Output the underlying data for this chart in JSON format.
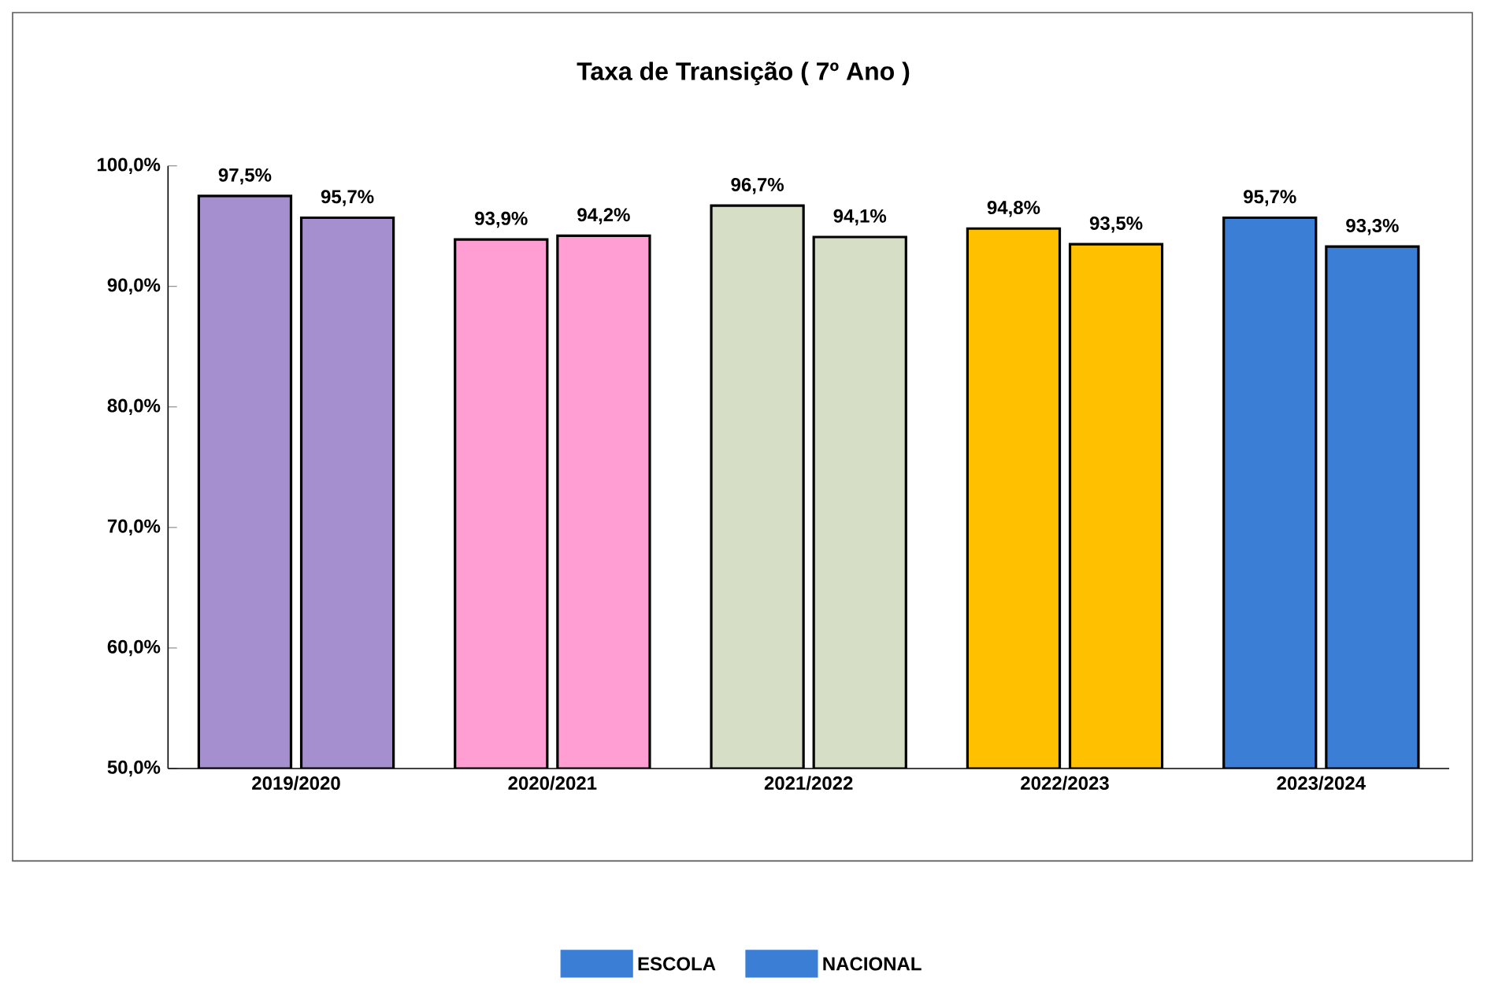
{
  "chart_data": {
    "type": "bar",
    "title": "Taxa de Transição ( 7º Ano )",
    "categories": [
      "2019/2020",
      "2020/2021",
      "2021/2022",
      "2022/2023",
      "2023/2024"
    ],
    "series": [
      {
        "name": "ESCOLA",
        "colors": [
          "#a68fcf",
          "#ff9ed2",
          "#d6dfc6",
          "#ffc000",
          "#3a7fd5"
        ],
        "values": [
          97.5,
          93.9,
          96.7,
          94.8,
          95.7
        ],
        "value_labels": [
          "97,5%",
          "93,9%",
          "96,7%",
          "94,8%",
          "95,7%"
        ]
      },
      {
        "name": "NACIONAL",
        "colors": [
          "#a68fcf",
          "#ff9ed2",
          "#d6dfc6",
          "#ffc000",
          "#3a7fd5"
        ],
        "values": [
          95.7,
          94.2,
          94.1,
          93.5,
          93.3
        ],
        "value_labels": [
          "95,7%",
          "94,2%",
          "94,1%",
          "93,5%",
          "93,3%"
        ]
      }
    ],
    "ylim": [
      50,
      100
    ],
    "yticks": [
      {
        "value": 50,
        "label": "50,0%"
      },
      {
        "value": 60,
        "label": "60,0%"
      },
      {
        "value": 70,
        "label": "70,0%"
      },
      {
        "value": 80,
        "label": "80,0%"
      },
      {
        "value": 90,
        "label": "90,0%"
      },
      {
        "value": 100,
        "label": "100,0%"
      }
    ],
    "grid": false,
    "legend": "bottom"
  }
}
